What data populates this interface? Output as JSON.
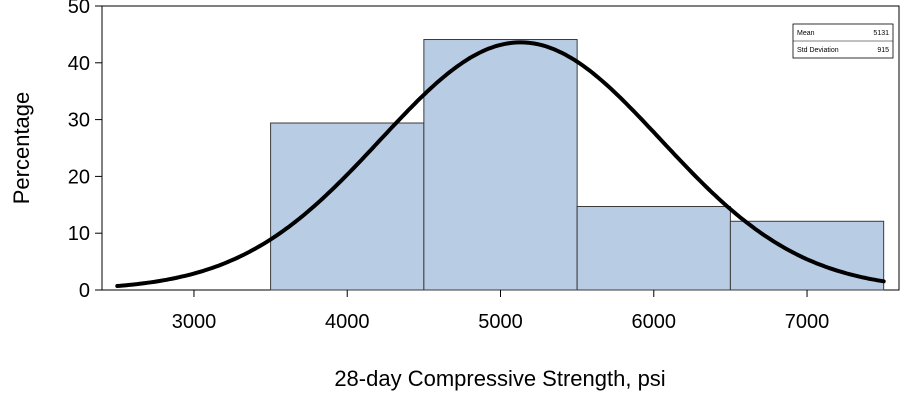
{
  "chart_data": {
    "type": "histogram",
    "xlabel": "28-day Compressive Strength, psi",
    "ylabel": "Percentage",
    "xlim": [
      2400,
      7600
    ],
    "ylim": [
      0,
      50
    ],
    "x_ticks": [
      "3000",
      "4000",
      "5000",
      "6000",
      "7000"
    ],
    "y_ticks": [
      "0",
      "10",
      "20",
      "30",
      "40",
      "50"
    ],
    "bins": [
      {
        "start": 3500,
        "end": 4500,
        "value": 29.4
      },
      {
        "start": 4500,
        "end": 5500,
        "value": 44.1
      },
      {
        "start": 5500,
        "end": 6500,
        "value": 14.7
      },
      {
        "start": 6500,
        "end": 7500,
        "value": 12.1
      }
    ],
    "normal_curve": {
      "mean": 5131,
      "std": 915,
      "x_range": [
        2500,
        7500
      ]
    },
    "legend": {
      "rows": [
        {
          "label": "Mean",
          "value": "5131"
        },
        {
          "label": "Std Deviation",
          "value": "915"
        }
      ],
      "position": "top-right"
    },
    "colors": {
      "bar_fill": "#b8cde4",
      "bar_stroke": "#3a3a3a",
      "curve": "#000000",
      "axis": "#000000"
    },
    "grid": false
  }
}
